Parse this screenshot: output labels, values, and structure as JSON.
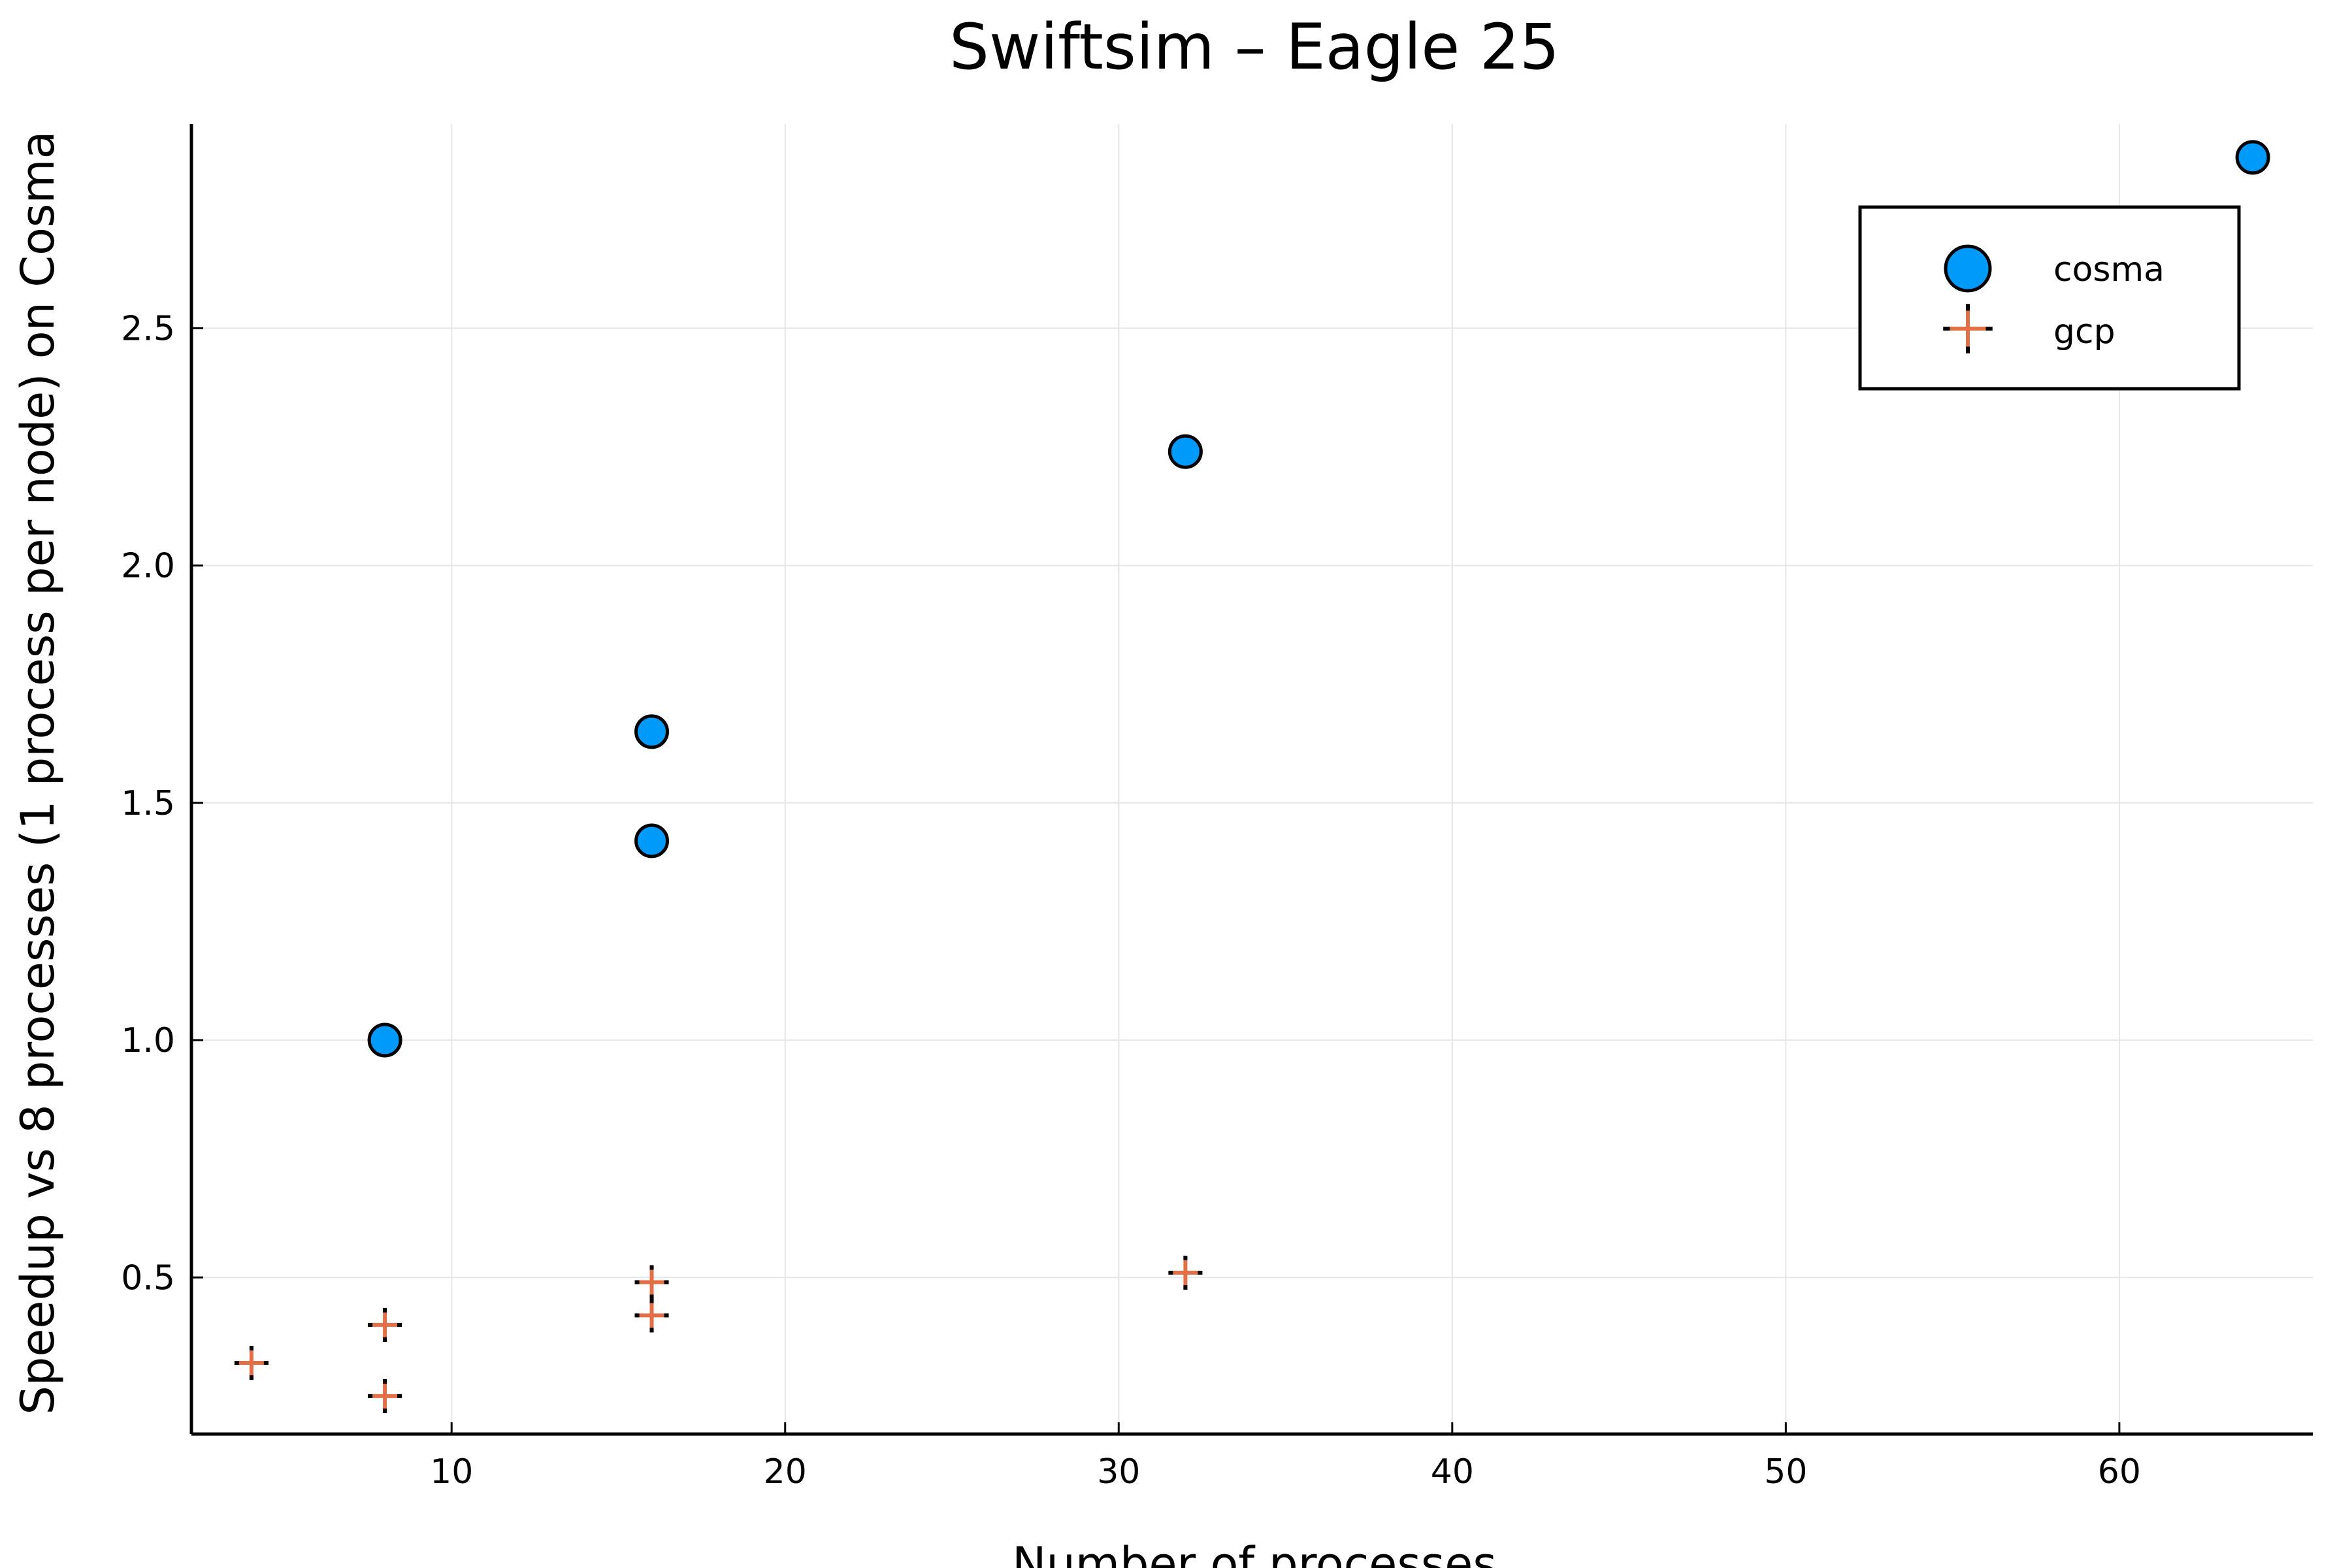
{
  "chart_data": {
    "type": "scatter",
    "title": "Swiftsim – Eagle 25",
    "xlabel": "Number of processes",
    "ylabel": "Speedup vs 8 processes (1 process per node) on Cosma",
    "xlim": [
      2.2,
      65.8
    ],
    "ylim": [
      0.17,
      2.93
    ],
    "xticks": [
      10,
      20,
      30,
      40,
      50,
      60
    ],
    "yticks": [
      0.5,
      1.0,
      1.5,
      2.0,
      2.5
    ],
    "xtick_labels": [
      "10",
      "20",
      "30",
      "40",
      "50",
      "60"
    ],
    "ytick_labels": [
      "0.5",
      "1.0",
      "1.5",
      "2.0",
      "2.5"
    ],
    "grid": true,
    "legend_position": "top-right",
    "series": [
      {
        "name": "cosma",
        "marker": "circle",
        "color": "#009AFA",
        "points": [
          {
            "x": 8,
            "y": 1.0
          },
          {
            "x": 16,
            "y": 1.65
          },
          {
            "x": 16,
            "y": 1.42
          },
          {
            "x": 32,
            "y": 2.24
          },
          {
            "x": 64,
            "y": 2.86
          }
        ]
      },
      {
        "name": "gcp",
        "marker": "cross",
        "color": "#E26F46",
        "points": [
          {
            "x": 4,
            "y": 0.32
          },
          {
            "x": 8,
            "y": 0.4
          },
          {
            "x": 8,
            "y": 0.25
          },
          {
            "x": 16,
            "y": 0.49
          },
          {
            "x": 16,
            "y": 0.42
          },
          {
            "x": 32,
            "y": 0.51
          }
        ]
      }
    ]
  }
}
